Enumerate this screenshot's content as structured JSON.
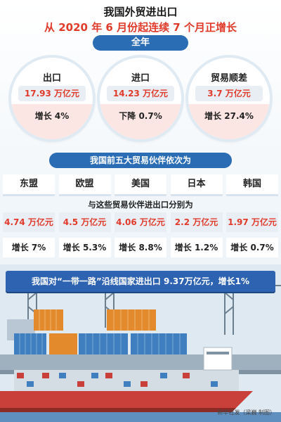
{
  "title": "我国外贸进出口",
  "subtitle": "从 2020 年 6 月份起连续 7 个月正增长",
  "year_pill": "全年",
  "summary": [
    {
      "label": "出口",
      "value": "17.93 万亿元",
      "change": "增长 4%"
    },
    {
      "label": "进口",
      "value": "14.23 万亿元",
      "change": "下降 0.7%"
    },
    {
      "label": "贸易顺差",
      "value": "3.7 万亿元",
      "change": "增长 27.4%"
    }
  ],
  "partners_pill": "我国前五大贸易伙伴依次为",
  "partners_sub": "与这些贸易伙伴进出口分别为",
  "partners": [
    {
      "name": "东盟",
      "value": "4.74 万亿元",
      "growth": "增长 7%"
    },
    {
      "name": "欧盟",
      "value": "4.5 万亿元",
      "growth": "增长 5.3%"
    },
    {
      "name": "美国",
      "value": "4.06 万亿元",
      "growth": "增长 8.8%"
    },
    {
      "name": "日本",
      "value": "2.2 万亿元",
      "growth": "增长 1.2%"
    },
    {
      "name": "韩国",
      "value": "1.97 万亿元",
      "growth": "增长 0.7%"
    }
  ],
  "banner": "我国对“一带一路”沿线国家进出口 9.37万亿元，增长1%",
  "credit": "新华社发（梁巍 制图）"
}
